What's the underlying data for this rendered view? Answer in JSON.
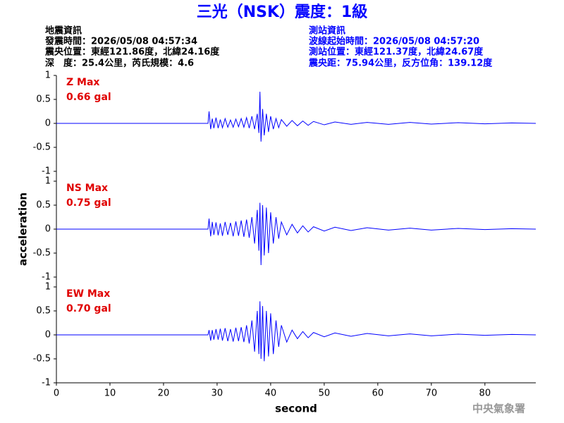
{
  "header": {
    "title": "三光（NSK）震度：1級",
    "left": [
      "地震資訊",
      "發震時間：2026/05/08 04:57:34",
      "震央位置：東經121.86度，北緯24.16度",
      "深　度：25.4公里，芮氏規模：4.6"
    ],
    "right": [
      "測站資訊",
      "波線起始時間：2026/05/08 04:57:20",
      "測站位置：東經121.37度，北緯24.67度",
      "震央距：75.94公里，反方位角：139.12度"
    ]
  },
  "footer": "中央氣象署",
  "chart_data": [
    {
      "type": "line",
      "annotations": [
        "Z Max",
        "0.66 gal"
      ],
      "color": "#0000ff",
      "xlim": [
        0,
        89.5
      ],
      "ylim": [
        -1,
        1
      ],
      "yticks": [
        1,
        0.5,
        0,
        -0.5,
        -1
      ],
      "x": [
        0,
        28.3,
        28.5,
        28.8,
        29.1,
        29.4,
        29.8,
        30.2,
        30.6,
        31,
        31.5,
        32,
        32.5,
        33,
        33.5,
        34,
        34.5,
        35,
        35.5,
        36,
        36.5,
        37,
        37.5,
        37.8,
        38,
        38.2,
        38.5,
        38.8,
        39.2,
        39.6,
        40,
        40.5,
        41,
        41.5,
        42,
        43,
        44,
        45,
        46,
        47,
        48,
        50,
        52,
        55,
        58,
        62,
        66,
        70,
        75,
        80,
        85,
        89.5
      ],
      "values": [
        0,
        0,
        0.25,
        -0.12,
        0.1,
        -0.1,
        0.12,
        -0.1,
        0.08,
        -0.09,
        0.1,
        -0.08,
        0.07,
        -0.08,
        0.09,
        -0.07,
        0.1,
        -0.08,
        0.12,
        -0.1,
        0.15,
        -0.12,
        0.2,
        -0.2,
        0.66,
        -0.38,
        0.3,
        -0.25,
        0.2,
        -0.18,
        0.15,
        -0.12,
        0.1,
        -0.09,
        0.08,
        -0.06,
        0.06,
        -0.05,
        0.05,
        -0.04,
        0.04,
        -0.03,
        0.03,
        -0.02,
        0.02,
        -0.02,
        0.02,
        -0.015,
        0.015,
        -0.01,
        0.01,
        0
      ]
    },
    {
      "type": "line",
      "annotations": [
        "NS Max",
        "0.75 gal"
      ],
      "ylabel": "acceleration",
      "color": "#0000ff",
      "xlim": [
        0,
        89.5
      ],
      "ylim": [
        -1,
        1
      ],
      "yticks": [
        1,
        0.5,
        0,
        -0.5,
        -1
      ],
      "x": [
        0,
        28.3,
        28.5,
        28.8,
        29.1,
        29.4,
        29.8,
        30.2,
        30.6,
        31,
        31.5,
        32,
        32.5,
        33,
        33.5,
        34,
        34.5,
        35,
        35.5,
        36,
        36.5,
        37,
        37.5,
        37.8,
        38,
        38.2,
        38.5,
        38.8,
        39.2,
        39.6,
        40,
        40.5,
        41,
        41.5,
        42,
        43,
        44,
        45,
        46,
        47,
        48,
        50,
        52,
        55,
        58,
        62,
        66,
        70,
        75,
        80,
        85,
        89.5
      ],
      "values": [
        0,
        0,
        0.22,
        -0.15,
        0.15,
        -0.12,
        0.14,
        -0.13,
        0.12,
        -0.14,
        0.15,
        -0.12,
        0.13,
        -0.15,
        0.16,
        -0.14,
        0.18,
        -0.16,
        0.2,
        -0.18,
        0.25,
        -0.3,
        0.4,
        -0.45,
        0.55,
        -0.75,
        0.5,
        -0.55,
        0.45,
        -0.5,
        0.35,
        -0.3,
        0.25,
        -0.2,
        0.15,
        -0.12,
        0.1,
        -0.08,
        0.07,
        -0.06,
        0.05,
        -0.04,
        0.04,
        -0.03,
        0.03,
        -0.02,
        0.02,
        -0.02,
        0.015,
        -0.01,
        0.01,
        0
      ]
    },
    {
      "type": "line",
      "annotations": [
        "EW Max",
        "0.70 gal"
      ],
      "xlabel": "second",
      "color": "#0000ff",
      "xlim": [
        0,
        89.5
      ],
      "ylim": [
        -1,
        1
      ],
      "yticks": [
        1,
        0.5,
        0,
        -0.5,
        -1
      ],
      "xticks": [
        0,
        10,
        20,
        30,
        40,
        50,
        60,
        70,
        80
      ],
      "x": [
        0,
        28.3,
        28.5,
        28.8,
        29.1,
        29.4,
        29.8,
        30.2,
        30.6,
        31,
        31.5,
        32,
        32.5,
        33,
        33.5,
        34,
        34.5,
        35,
        35.5,
        36,
        36.5,
        37,
        37.5,
        37.8,
        38,
        38.2,
        38.5,
        38.8,
        39.2,
        39.6,
        40,
        40.5,
        41,
        41.5,
        42,
        43,
        44,
        45,
        46,
        47,
        48,
        50,
        52,
        55,
        58,
        62,
        66,
        70,
        75,
        80,
        85,
        89.5
      ],
      "values": [
        0,
        0,
        0.1,
        -0.12,
        0.1,
        -0.1,
        0.12,
        -0.1,
        0.13,
        -0.12,
        0.14,
        -0.13,
        0.12,
        -0.14,
        0.15,
        -0.13,
        0.16,
        -0.15,
        0.2,
        -0.18,
        0.3,
        -0.35,
        0.5,
        -0.4,
        0.7,
        -0.5,
        0.6,
        -0.55,
        0.5,
        -0.45,
        0.45,
        -0.4,
        0.3,
        -0.25,
        0.2,
        -0.15,
        0.1,
        -0.08,
        0.07,
        -0.06,
        0.05,
        -0.04,
        0.04,
        -0.03,
        0.03,
        -0.02,
        0.02,
        -0.02,
        0.015,
        -0.01,
        0.01,
        0
      ]
    }
  ]
}
